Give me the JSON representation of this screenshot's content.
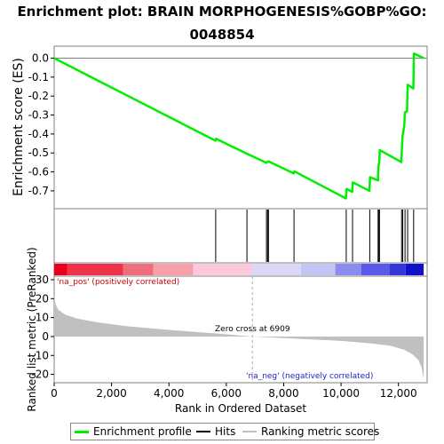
{
  "title": "Enrichment plot: BRAIN MORPHOGENESIS%GOBP%GO:\n0048854",
  "colors": {
    "es_line": "#00ee00",
    "hits": "#000000",
    "metric_fill": "#c0c0c0",
    "zero_line": "#808080",
    "pos_label": "#cc0000",
    "neg_label": "#2222cc"
  },
  "legend": {
    "enrichment_profile": "Enrichment profile",
    "hits": "Hits",
    "ranking_metric_scores": "Ranking metric scores"
  },
  "chart_data": {
    "type": "line",
    "title": "Enrichment plot: BRAIN MORPHOGENESIS%GOBP%GO:\n0048854",
    "xlabel": "Rank in Ordered Dataset",
    "xlim": [
      0,
      13000
    ],
    "x_ticks": [
      0,
      2000,
      4000,
      6000,
      8000,
      10000,
      12000
    ],
    "x_tick_labels": [
      "0",
      "2,000",
      "4,000",
      "6,000",
      "8,000",
      "10,000",
      "12,000"
    ],
    "es_panel": {
      "ylabel": "Enrichment score (ES)",
      "ylim": [
        -0.78,
        0.04
      ],
      "y_ticks": [
        0.0,
        -0.1,
        -0.2,
        -0.3,
        -0.4,
        -0.5,
        -0.6,
        -0.7
      ],
      "y_tick_labels": [
        "0.0",
        "-0.1",
        "-0.2",
        "-0.3",
        "-0.4",
        "-0.5",
        "-0.6",
        "-0.7"
      ],
      "series": [
        {
          "name": "Enrichment profile",
          "points": [
            [
              0,
              0.0
            ],
            [
              5620,
              -0.435
            ],
            [
              5640,
              -0.425
            ],
            [
              6730,
              -0.505
            ],
            [
              7400,
              -0.552
            ],
            [
              7420,
              -0.548
            ],
            [
              7480,
              -0.545
            ],
            [
              8350,
              -0.608
            ],
            [
              8370,
              -0.597
            ],
            [
              10170,
              -0.74
            ],
            [
              10190,
              -0.69
            ],
            [
              10390,
              -0.705
            ],
            [
              10410,
              -0.655
            ],
            [
              10990,
              -0.7
            ],
            [
              11010,
              -0.628
            ],
            [
              11290,
              -0.645
            ],
            [
              11300,
              -0.57
            ],
            [
              11330,
              -0.55
            ],
            [
              11350,
              -0.485
            ],
            [
              12100,
              -0.548
            ],
            [
              12120,
              -0.48
            ],
            [
              12140,
              -0.415
            ],
            [
              12200,
              -0.36
            ],
            [
              12230,
              -0.285
            ],
            [
              12300,
              -0.28
            ],
            [
              12320,
              -0.14
            ],
            [
              12520,
              -0.16
            ],
            [
              12540,
              0.025
            ],
            [
              12880,
              0.0
            ]
          ]
        }
      ]
    },
    "hits": [
      5630,
      6720,
      7400,
      7440,
      7470,
      8360,
      10180,
      10400,
      11000,
      11290,
      11310,
      11340,
      12110,
      12150,
      12230,
      12320,
      12530
    ],
    "metric_panel": {
      "ylabel": "Ranked list metric (PreRanked)",
      "ylim": [
        -23,
        30
      ],
      "y_ticks": [
        30,
        20,
        10,
        0,
        -10,
        -20
      ],
      "y_tick_labels": [
        "30",
        "20",
        "10",
        "0",
        "-10",
        "-20"
      ],
      "metric_curve": [
        [
          0,
          22
        ],
        [
          50,
          17
        ],
        [
          150,
          14
        ],
        [
          400,
          11.5
        ],
        [
          800,
          9.5
        ],
        [
          1500,
          7.5
        ],
        [
          2500,
          5.5
        ],
        [
          4000,
          3.5
        ],
        [
          5500,
          1.8
        ],
        [
          6909,
          0.0
        ],
        [
          8500,
          -1.2
        ],
        [
          10000,
          -2.3
        ],
        [
          11000,
          -3.6
        ],
        [
          11700,
          -4.8
        ],
        [
          12200,
          -7
        ],
        [
          12500,
          -9.5
        ],
        [
          12700,
          -12.5
        ],
        [
          12800,
          -16
        ],
        [
          12880,
          -22.5
        ]
      ],
      "zero_cross_label": "Zero cross at 6909",
      "zero_cross_x": 6909,
      "pos_label": "'na_pos' (positively correlated)",
      "neg_label": "'na_neg' (negatively correlated)"
    },
    "heat_bar": [
      {
        "from": 0,
        "to": 450,
        "color": "#e8001a"
      },
      {
        "from": 450,
        "to": 2400,
        "color": "#f0314a"
      },
      {
        "from": 2400,
        "to": 3450,
        "color": "#f06d7c"
      },
      {
        "from": 3450,
        "to": 4850,
        "color": "#f8a0a8"
      },
      {
        "from": 4850,
        "to": 6900,
        "color": "#fbc8dc"
      },
      {
        "from": 6900,
        "to": 8600,
        "color": "#d9d9f5"
      },
      {
        "from": 8600,
        "to": 9800,
        "color": "#c5c5f5"
      },
      {
        "from": 9800,
        "to": 10700,
        "color": "#8c8cf0"
      },
      {
        "from": 10700,
        "to": 11700,
        "color": "#5a5ae8"
      },
      {
        "from": 11700,
        "to": 12250,
        "color": "#3434d8"
      },
      {
        "from": 12250,
        "to": 12880,
        "color": "#1010c8"
      }
    ]
  }
}
